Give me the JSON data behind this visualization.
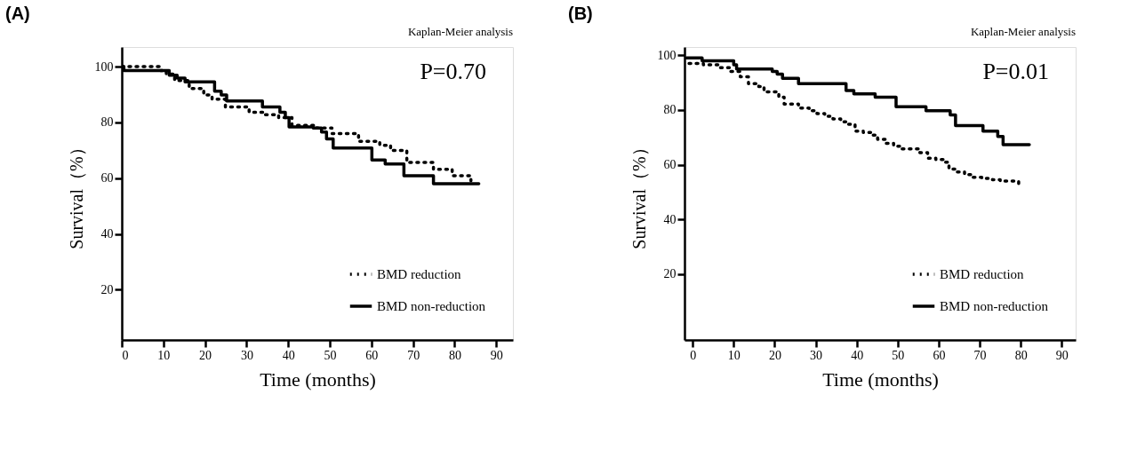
{
  "chart_data": [
    {
      "type": "step",
      "title": "(A)",
      "xlabel": "Time (months)",
      "ylabel": "Survival（%）",
      "annotations": [
        "Kaplan-Meier analysis",
        "P=0.70"
      ],
      "xlim": [
        0,
        94
      ],
      "xticks": [
        0,
        10,
        20,
        30,
        40,
        50,
        60,
        70,
        80,
        90
      ],
      "ylim": [
        2,
        107
      ],
      "yticks": [
        20,
        40,
        60,
        80,
        100
      ],
      "legend": "bottom right",
      "grid": false,
      "series": [
        {
          "name": "BMD reduction",
          "color": "#000000",
          "line_style": "dotted",
          "x": [
            0,
            9,
            10.7,
            12.7,
            16.2,
            19.7,
            21.7,
            24.9,
            30.6,
            34.5,
            37.7,
            40.9,
            46.7,
            50.5,
            56.9,
            62,
            64.6,
            68.5,
            74.9,
            79.4,
            83.9
          ],
          "values": [
            100,
            98.6,
            97.3,
            95,
            92.1,
            89.8,
            88.3,
            85.5,
            83.6,
            82.7,
            81.7,
            78.9,
            78,
            76,
            73.2,
            71.8,
            69.9,
            65.6,
            63.2,
            60.9,
            59
          ]
        },
        {
          "name": "BMD non-reduction",
          "color": "#000000",
          "line_style": "solid",
          "x": [
            0,
            0.5,
            11.4,
            13.3,
            15.2,
            22.3,
            23.9,
            25.2,
            33.8,
            38,
            39.3,
            40.2,
            46,
            48,
            49.2,
            50.8,
            60.1,
            63.3,
            67.8,
            74.9,
            85.8
          ],
          "values": [
            100,
            98.6,
            96.9,
            95.9,
            94.5,
            91.2,
            89.8,
            87.7,
            85.5,
            83.6,
            81.7,
            78.4,
            78,
            76.5,
            74.1,
            70.8,
            66.5,
            65.1,
            60.9,
            58,
            58
          ]
        }
      ]
    },
    {
      "type": "step",
      "title": "(B)",
      "xlabel": "Time (months)",
      "ylabel": "Survival（%）",
      "annotations": [
        "Kaplan-Meier analysis",
        "P=0.01"
      ],
      "xlim": [
        -2,
        93.4
      ],
      "xticks": [
        0,
        10,
        20,
        30,
        40,
        50,
        60,
        70,
        80,
        90
      ],
      "ylim": [
        -4,
        103
      ],
      "yticks": [
        20,
        40,
        60,
        80,
        100
      ],
      "legend": "bottom right",
      "grid": false,
      "series": [
        {
          "name": "BMD reduction",
          "color": "#000000",
          "line_style": "dotted",
          "x": [
            -0.9,
            2.6,
            6.5,
            9.1,
            11.6,
            13.6,
            16.1,
            17.4,
            21,
            22.3,
            25.8,
            28.4,
            30.3,
            32.2,
            34.2,
            36.1,
            38,
            39.6,
            41.6,
            43.8,
            45.1,
            47,
            49,
            50.9,
            53.5,
            55.4,
            57.3,
            59.3,
            61.2,
            62.5,
            64.4,
            66.3,
            68.2,
            70.5,
            73.1,
            75,
            77.3,
            79.5
          ],
          "values": [
            97,
            96.5,
            95.5,
            94.1,
            92.1,
            89.6,
            88.6,
            86.6,
            84.7,
            82.2,
            80.7,
            79.7,
            78.7,
            77.7,
            76.7,
            75.7,
            74.8,
            72.3,
            71.8,
            70.8,
            69.3,
            67.8,
            66.8,
            65.8,
            65.8,
            64.4,
            62.4,
            61.9,
            60.9,
            58.4,
            57.4,
            56.4,
            55.4,
            55,
            54.5,
            54,
            54,
            53
          ]
        },
        {
          "name": "BMD non-reduction",
          "color": "#000000",
          "line_style": "solid",
          "x": [
            -1.5,
            2.3,
            10,
            10.7,
            19.4,
            20.6,
            21.9,
            25.8,
            37.4,
            39.3,
            44.5,
            49.6,
            56.9,
            62.8,
            64.1,
            70.8,
            74.4,
            75.7,
            82.1
          ],
          "values": [
            99,
            98,
            96.5,
            95,
            94.1,
            93.1,
            91.6,
            89.6,
            87.1,
            85.9,
            84.7,
            81.2,
            79.7,
            78.2,
            74.3,
            72.3,
            70.3,
            67.3,
            67.3
          ]
        }
      ]
    }
  ]
}
